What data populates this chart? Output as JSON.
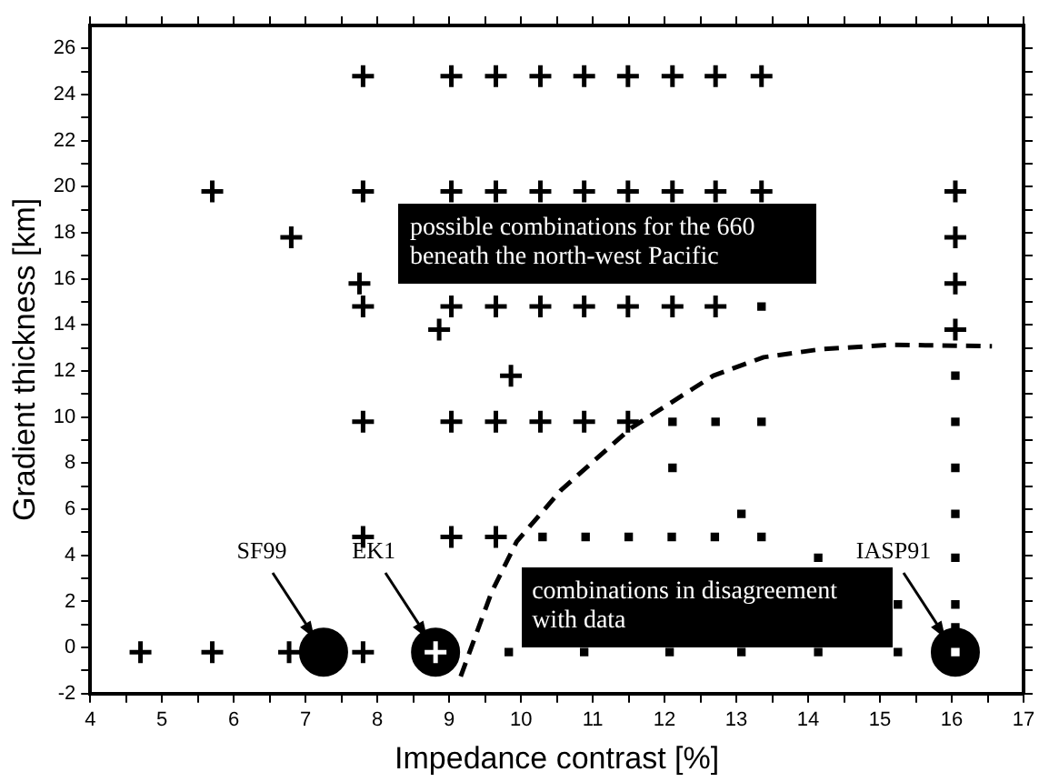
{
  "chart_data": {
    "type": "scatter",
    "xlabel": "Impedance contrast [%]",
    "ylabel": "Gradient thickness [km]",
    "xlim": [
      4,
      17
    ],
    "ylim": [
      -2,
      27
    ],
    "xticks": [
      4,
      {
        "value": 4.5,
        "label": null
      },
      5,
      {
        "value": 5.5,
        "label": null
      },
      6,
      {
        "value": 6.5,
        "label": null
      },
      7,
      {
        "value": 7.5,
        "label": null
      },
      8,
      {
        "value": 8.5,
        "label": null
      },
      9,
      {
        "value": 9.5,
        "label": null
      },
      10,
      {
        "value": 10.5,
        "label": null
      },
      11,
      {
        "value": 11.5,
        "label": null
      },
      12,
      {
        "value": 12.5,
        "label": null
      },
      13,
      {
        "value": 13.5,
        "label": null
      },
      14,
      {
        "value": 14.5,
        "label": null
      },
      15,
      {
        "value": 15.5,
        "label": null
      },
      16,
      {
        "value": 16.5,
        "label": null
      },
      17
    ],
    "yticks": [
      -2,
      {
        "value": -1,
        "label": null
      },
      0,
      {
        "value": 1,
        "label": null
      },
      2,
      {
        "value": 3,
        "label": null
      },
      4,
      {
        "value": 5,
        "label": null
      },
      6,
      {
        "value": 7,
        "label": null
      },
      8,
      {
        "value": 9,
        "label": null
      },
      10,
      {
        "value": 11,
        "label": null
      },
      12,
      {
        "value": 13,
        "label": null
      },
      14,
      {
        "value": 15,
        "label": null
      },
      16,
      {
        "value": 17,
        "label": null
      },
      18,
      {
        "value": 19,
        "label": null
      },
      20,
      {
        "value": 21,
        "label": null
      },
      22,
      {
        "value": 23,
        "label": null
      },
      24,
      {
        "value": 25,
        "label": null
      },
      26
    ],
    "grid": false,
    "legend": false,
    "series": [
      {
        "marker": "cross",
        "color": "#000000",
        "x": [
          7.8,
          9.03,
          9.65,
          10.27,
          10.88,
          11.49,
          12.11,
          12.71,
          13.35,
          5.7,
          7.8,
          9.03,
          9.65,
          10.27,
          10.88,
          11.49,
          12.11,
          12.71,
          13.35,
          16.05,
          6.8,
          16.05,
          7.75,
          16.05,
          7.8,
          9.03,
          9.65,
          10.27,
          10.88,
          11.49,
          12.11,
          12.71,
          8.86,
          16.05,
          9.86,
          7.8,
          9.03,
          9.65,
          10.27,
          10.88,
          11.49,
          7.8,
          9.03,
          9.65,
          4.7,
          5.7,
          6.77,
          7.8
        ],
        "values": [
          24.8,
          24.8,
          24.8,
          24.8,
          24.8,
          24.8,
          24.8,
          24.8,
          24.8,
          19.8,
          19.8,
          19.8,
          19.8,
          19.8,
          19.8,
          19.8,
          19.8,
          19.8,
          19.8,
          19.8,
          17.8,
          17.8,
          15.8,
          15.8,
          14.8,
          14.8,
          14.8,
          14.8,
          14.8,
          14.8,
          14.8,
          14.8,
          13.8,
          13.8,
          11.8,
          9.8,
          9.8,
          9.8,
          9.8,
          9.8,
          9.8,
          4.8,
          4.8,
          4.8,
          -0.2,
          -0.2,
          -0.2,
          -0.2
        ]
      },
      {
        "marker": "square",
        "color": "#000000",
        "x": [
          13.35,
          16.05,
          12.11,
          12.71,
          13.35,
          16.05,
          12.11,
          16.05,
          13.07,
          16.05,
          10.3,
          10.9,
          11.5,
          12.1,
          12.7,
          13.35,
          14.14,
          16.05,
          15.25,
          16.05,
          16.05,
          9.83,
          10.88,
          12.07,
          13.07,
          14.14,
          15.25
        ],
        "values": [
          14.8,
          11.8,
          9.8,
          9.8,
          9.8,
          9.8,
          7.8,
          7.8,
          5.8,
          5.8,
          4.8,
          4.8,
          4.8,
          4.8,
          4.8,
          4.8,
          3.9,
          3.9,
          1.87,
          1.87,
          0.88,
          -0.2,
          -0.2,
          -0.2,
          -0.2,
          -0.2,
          -0.2
        ]
      },
      {
        "marker": "circle",
        "color": "#000000",
        "x": [
          7.25,
          8.81,
          16.05
        ],
        "values": [
          -0.2,
          -0.2,
          -0.2
        ]
      },
      {
        "marker": "cross",
        "color": "#ffffff",
        "x": [
          8.81
        ],
        "values": [
          -0.2
        ]
      },
      {
        "marker": "square",
        "color": "#ffffff",
        "x": [
          16.05
        ],
        "values": [
          -0.2
        ]
      },
      {
        "type": "line",
        "marker": "none",
        "line_style": "dashed",
        "color": "#000000",
        "x": [
          9.16,
          9.59,
          9.94,
          10.56,
          11.53,
          12.68,
          13.38,
          14.18,
          15.15,
          16.56
        ],
        "values": [
          -1.25,
          2.4,
          4.6,
          6.84,
          9.52,
          11.8,
          12.6,
          12.95,
          13.14,
          13.08
        ]
      }
    ],
    "annotations": [
      "SF99",
      "EK1",
      "IASP91",
      "possible combinations for the 660 beneath the north-west Pacific",
      "combinations in disagreement with data"
    ]
  }
}
